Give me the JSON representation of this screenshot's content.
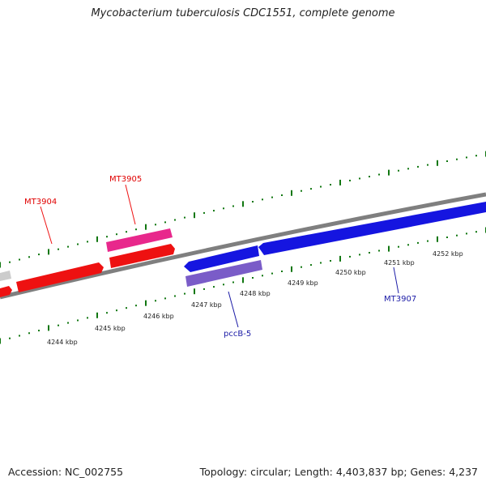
{
  "title": "Mycobacterium tuberculosis CDC1551, complete genome",
  "footer": {
    "accession": "Accession: NC_002755",
    "summary": "Topology: circular; Length: 4,403,837 bp; Genes: 4,237"
  },
  "ticks": [
    "4244 kbp",
    "4245 kbp",
    "4246 kbp",
    "4247 kbp",
    "4248 kbp",
    "4249 kbp",
    "4250 kbp",
    "4251 kbp",
    "4252 kbp"
  ],
  "genes": [
    {
      "label": "MT3904",
      "color": "#e00000"
    },
    {
      "label": "MT3905",
      "color": "#e00000"
    },
    {
      "label": "pccB-5",
      "color": "#1a1aa6"
    },
    {
      "label": "MT3907",
      "color": "#1a1aa6"
    }
  ],
  "colors": {
    "forward_gene": "#ee1111",
    "forward_gene_highlight": "#e8288c",
    "reverse_gene": "#1515e0",
    "reverse_gene_highlight": "#7a5cc8",
    "unknown_gene": "#cccccc",
    "backbone": "#7f7f7f",
    "tick": "#117711"
  }
}
